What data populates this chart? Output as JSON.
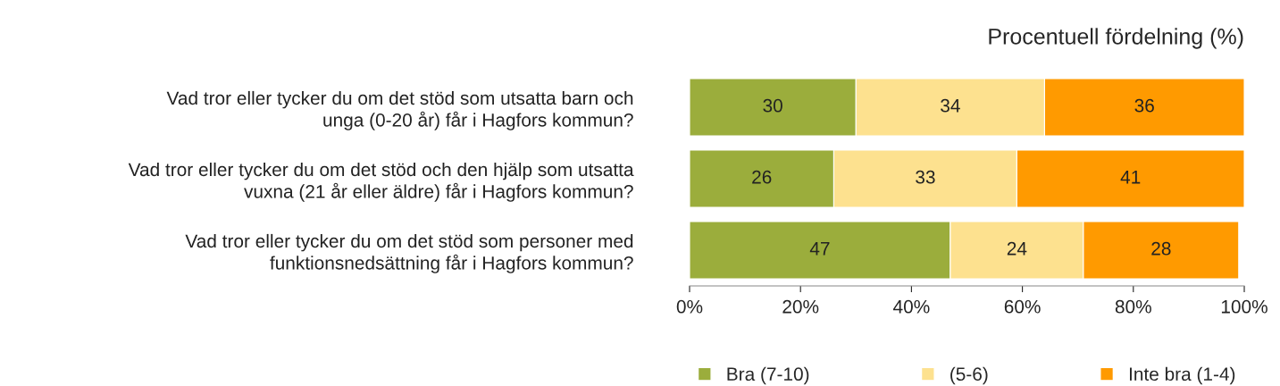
{
  "chart_data": {
    "type": "bar",
    "orientation": "horizontal",
    "stacked": true,
    "title": "Procentuell fördelning (%)",
    "categories": [
      "Vad tror eller tycker du om det stöd som utsatta barn och\nunga (0-20 år) får i Hagfors kommun?",
      "Vad tror eller tycker du om det stöd och den hjälp som utsatta\nvuxna (21 år eller äldre) får i Hagfors kommun?",
      "Vad tror eller tycker du om det stöd som personer med\nfunktionsnedsättning får i Hagfors kommun?"
    ],
    "series": [
      {
        "name": "Bra (7-10)",
        "color": "#9bad3c",
        "values": [
          30,
          26,
          47
        ]
      },
      {
        "name": "(5-6)",
        "color": "#fde18f",
        "values": [
          34,
          33,
          24
        ]
      },
      {
        "name": "Inte bra (1-4)",
        "color": "#ff9a00",
        "values": [
          36,
          41,
          28
        ]
      }
    ],
    "xlim": [
      0,
      100
    ],
    "xticks": [
      {
        "value": 0,
        "label": "0%"
      },
      {
        "value": 20,
        "label": "20%"
      },
      {
        "value": 40,
        "label": "40%"
      },
      {
        "value": 60,
        "label": "60%"
      },
      {
        "value": 80,
        "label": "80%"
      },
      {
        "value": 100,
        "label": "100%"
      }
    ],
    "data_labels": true,
    "legend": "bottom",
    "grid": false
  }
}
